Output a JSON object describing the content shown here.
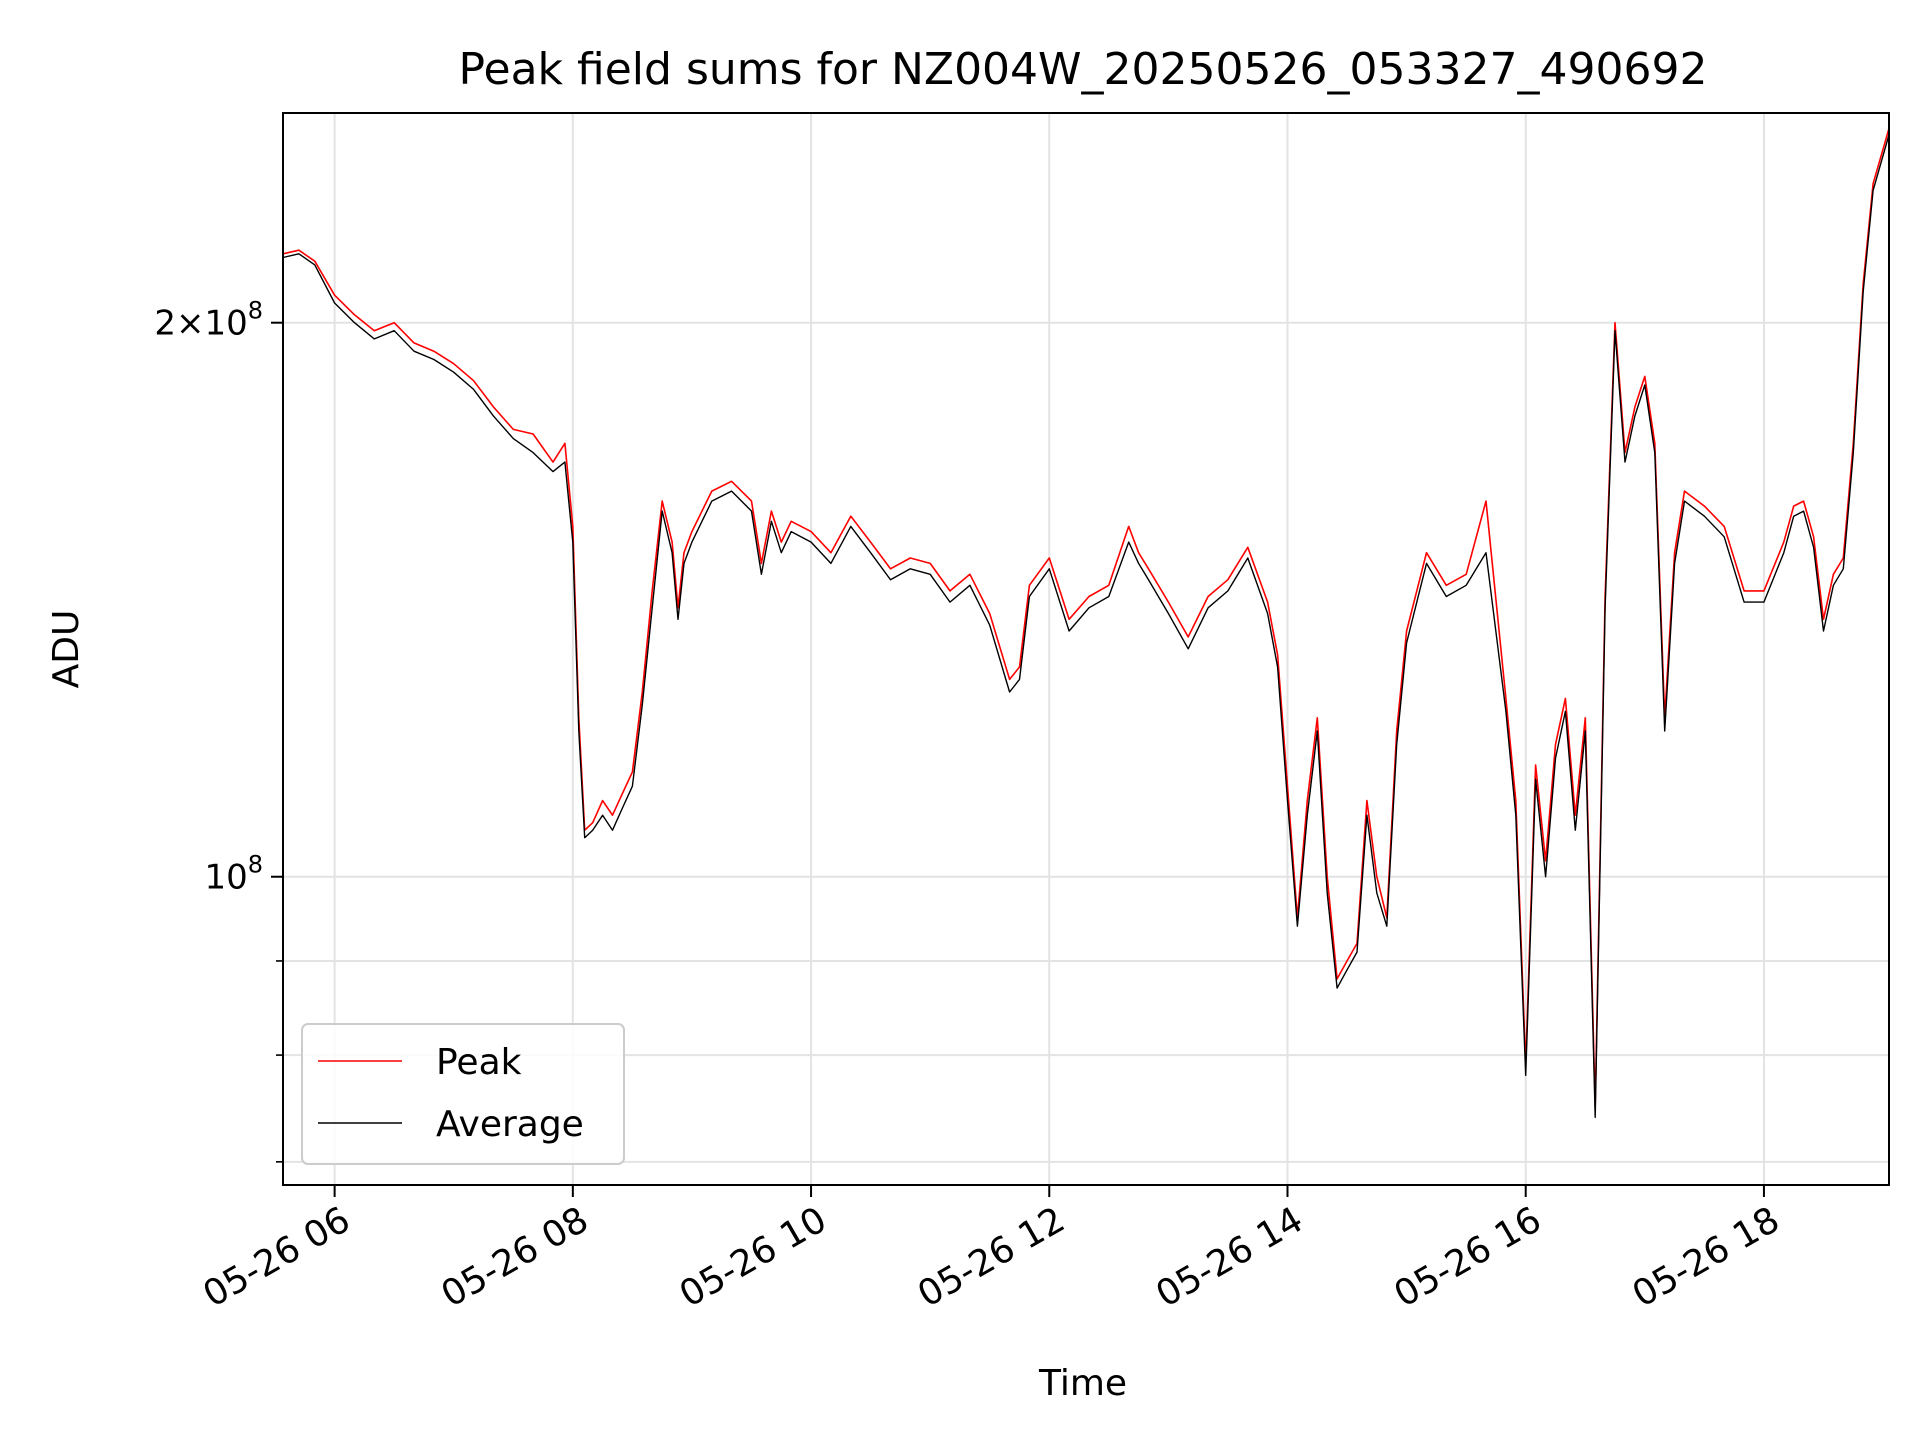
{
  "chart_data": {
    "type": "line",
    "title": "Peak field sums for NZ004W_20250526_053327_490692",
    "xlabel": "Time",
    "ylabel": "ADU",
    "x_unit": "hours of day 2025-05-26",
    "xlim": [
      "05:34",
      "19:03"
    ],
    "ylim": [
      68000000,
      260000000
    ],
    "yscale": "log",
    "grid": true,
    "legend_position": "lower-left",
    "x_ticks": [
      "05-26 06",
      "05-26 08",
      "05-26 10",
      "05-26 12",
      "05-26 14",
      "05-26 16",
      "05-26 18"
    ],
    "y_ticks": [
      "2 × 10^8",
      "10^8"
    ],
    "y_tick_labels": {
      "base": "2×10",
      "exp8": "8",
      "one": "10"
    },
    "x": [
      "05:34",
      "05:42",
      "05:50",
      "06:00",
      "06:10",
      "06:20",
      "06:30",
      "06:40",
      "06:50",
      "07:00",
      "07:10",
      "07:20",
      "07:30",
      "07:40",
      "07:50",
      "07:56",
      "08:00",
      "08:03",
      "08:06",
      "08:10",
      "08:15",
      "08:20",
      "08:25",
      "08:30",
      "08:35",
      "08:40",
      "08:45",
      "08:50",
      "08:53",
      "08:56",
      "09:00",
      "09:10",
      "09:20",
      "09:30",
      "09:35",
      "09:40",
      "09:45",
      "09:50",
      "10:00",
      "10:10",
      "10:20",
      "10:30",
      "10:40",
      "10:50",
      "11:00",
      "11:10",
      "11:20",
      "11:30",
      "11:40",
      "11:45",
      "11:50",
      "12:00",
      "12:10",
      "12:20",
      "12:30",
      "12:40",
      "12:45",
      "12:50",
      "13:00",
      "13:10",
      "13:20",
      "13:30",
      "13:40",
      "13:50",
      "13:55",
      "14:00",
      "14:05",
      "14:10",
      "14:15",
      "14:20",
      "14:25",
      "14:30",
      "14:35",
      "14:40",
      "14:45",
      "14:50",
      "14:55",
      "15:00",
      "15:10",
      "15:20",
      "15:30",
      "15:40",
      "15:50",
      "15:55",
      "16:00",
      "16:05",
      "16:10",
      "16:15",
      "16:20",
      "16:25",
      "16:30",
      "16:35",
      "16:40",
      "16:45",
      "16:50",
      "16:55",
      "17:00",
      "17:05",
      "17:10",
      "17:15",
      "17:20",
      "17:30",
      "17:40",
      "17:50",
      "18:00",
      "18:10",
      "18:15",
      "18:20",
      "18:25",
      "18:30",
      "18:35",
      "18:40",
      "18:45",
      "18:50",
      "18:55",
      "19:03"
    ],
    "series": [
      {
        "name": "Peak",
        "color": "#ff0000",
        "values": [
          218000000,
          219000000,
          216000000,
          207000000,
          202000000,
          198000000,
          200000000,
          195000000,
          193000000,
          190000000,
          186000000,
          180000000,
          175000000,
          174000000,
          168000000,
          172000000,
          155000000,
          122000000,
          106000000,
          107000000,
          110000000,
          108000000,
          111000000,
          114000000,
          126000000,
          143000000,
          160000000,
          152000000,
          140000000,
          150000000,
          154000000,
          162000000,
          164000000,
          160000000,
          148000000,
          158000000,
          152000000,
          156000000,
          154000000,
          150000000,
          157000000,
          152000000,
          147000000,
          149000000,
          148000000,
          143000000,
          146000000,
          139000000,
          128000000,
          130000000,
          144000000,
          149000000,
          138000000,
          142000000,
          144000000,
          155000000,
          150000000,
          147000000,
          141000000,
          135000000,
          142000000,
          145000000,
          151000000,
          141000000,
          132000000,
          112000000,
          95000000,
          110000000,
          122000000,
          100000000,
          88000000,
          90000000,
          92000000,
          110000000,
          100000000,
          95000000,
          120000000,
          136000000,
          150000000,
          144000000,
          146000000,
          160000000,
          125000000,
          110000000,
          79000000,
          115000000,
          102000000,
          118000000,
          125000000,
          108000000,
          122000000,
          75000000,
          142000000,
          200000000,
          170000000,
          180000000,
          187000000,
          172000000,
          122000000,
          150000000,
          162000000,
          159000000,
          155000000,
          143000000,
          143000000,
          152000000,
          159000000,
          160000000,
          153000000,
          138000000,
          146000000,
          149000000,
          172000000,
          210000000,
          238000000,
          255000000
        ]
      },
      {
        "name": "Average",
        "color": "#000000",
        "values": [
          217000000,
          218000000,
          215000000,
          205000000,
          200000000,
          196000000,
          198000000,
          193000000,
          191000000,
          188000000,
          184000000,
          178000000,
          173000000,
          170000000,
          166000000,
          168000000,
          152000000,
          120000000,
          105000000,
          106000000,
          108000000,
          106000000,
          109000000,
          112000000,
          124000000,
          140000000,
          158000000,
          150000000,
          138000000,
          148000000,
          152000000,
          160000000,
          162000000,
          158000000,
          146000000,
          156000000,
          150000000,
          154000000,
          152000000,
          148000000,
          155000000,
          150000000,
          145000000,
          147000000,
          146000000,
          141000000,
          144000000,
          137000000,
          126000000,
          128000000,
          142000000,
          147000000,
          136000000,
          140000000,
          142000000,
          152000000,
          148000000,
          145000000,
          139000000,
          133000000,
          140000000,
          143000000,
          149000000,
          139000000,
          130000000,
          110000000,
          94000000,
          108000000,
          120000000,
          98000000,
          87000000,
          89000000,
          91000000,
          108000000,
          98000000,
          94000000,
          118000000,
          134000000,
          148000000,
          142000000,
          144000000,
          150000000,
          123000000,
          108000000,
          78000000,
          113000000,
          100000000,
          116000000,
          123000000,
          106000000,
          120000000,
          74000000,
          140000000,
          198000000,
          168000000,
          178000000,
          185000000,
          170000000,
          120000000,
          148000000,
          160000000,
          157000000,
          153000000,
          141000000,
          141000000,
          150000000,
          157000000,
          158000000,
          151000000,
          136000000,
          144000000,
          147000000,
          170000000,
          208000000,
          236000000,
          253000000
        ]
      }
    ]
  }
}
